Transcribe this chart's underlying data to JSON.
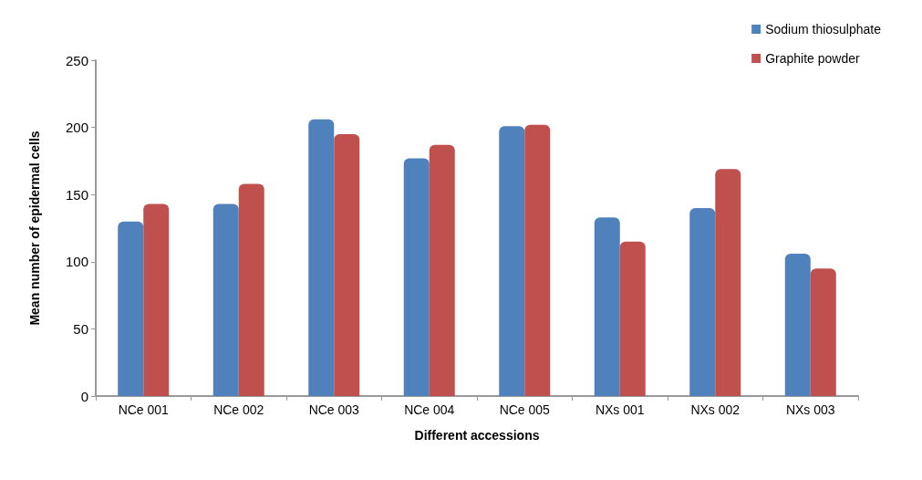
{
  "chart_data": {
    "type": "bar",
    "xlabel": "Different accessions",
    "ylabel": "Mean number of epidermal cells",
    "categories": [
      "NCe 001",
      "NCe 002",
      "NCe 003",
      "NCe 004",
      "NCe 005",
      "NXs 001",
      "NXs 002",
      "NXs 003"
    ],
    "series": [
      {
        "name": "Sodium thiosulphate",
        "color": "#4f81bd",
        "values": [
          130,
          143,
          206,
          177,
          201,
          133,
          140,
          106
        ]
      },
      {
        "name": "Graphite powder",
        "color": "#c0504d",
        "values": [
          143,
          158,
          195,
          187,
          202,
          115,
          169,
          95
        ]
      }
    ],
    "ylim": [
      0,
      250
    ],
    "yticks": [
      0,
      50,
      100,
      150,
      200,
      250
    ],
    "grid": false,
    "legend": "top right"
  }
}
